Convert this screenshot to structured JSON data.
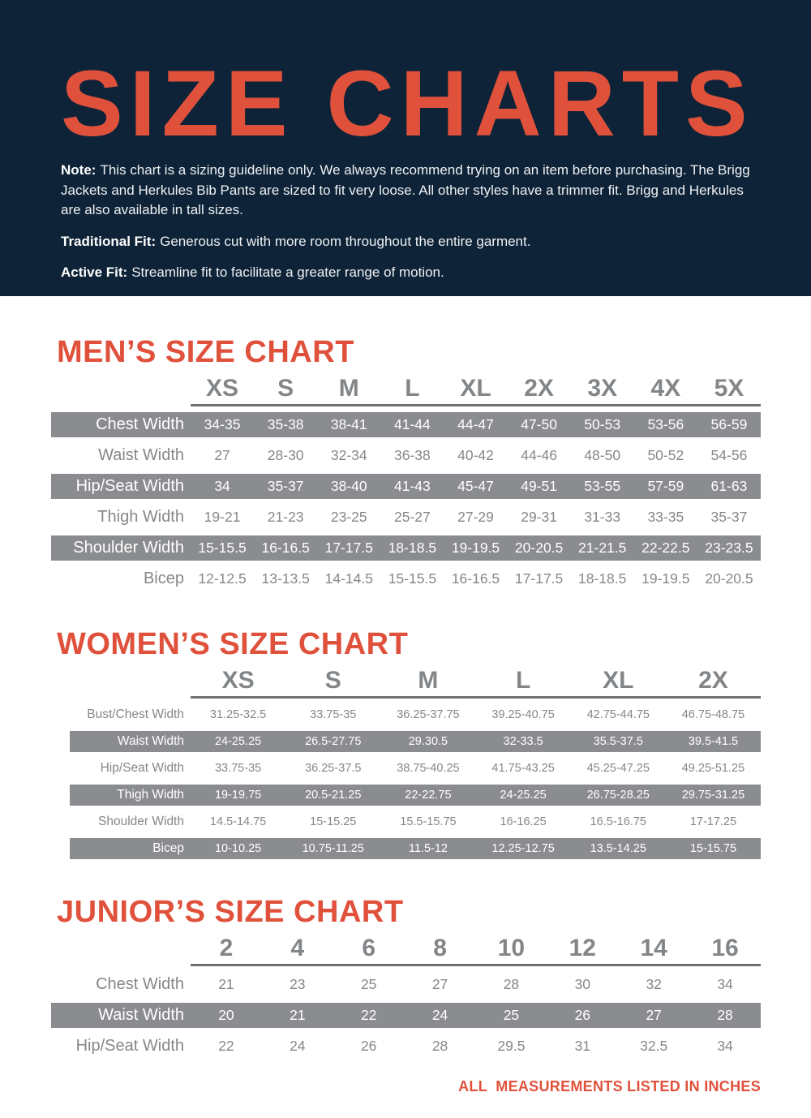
{
  "page": {
    "title": "SIZE CHARTS",
    "note_label": "Note:",
    "note_text": "This chart is a sizing guideline only. We always recommend trying on an item before purchasing. The Brigg Jackets and Herkules Bib Pants are sized to fit very loose. All other styles have a trimmer fit. Brigg and Herkules are also available in tall sizes.",
    "traditional_fit_label": "Traditional Fit:",
    "traditional_fit_text": "Generous cut with more room throughout the entire garment.",
    "active_fit_label": "Active Fit:",
    "active_fit_text": "Streamline fit to facilitate a greater range of motion.",
    "footer": "ALL  MEASUREMENTS LISTED IN INCHES",
    "colors": {
      "navy": "#0e2337",
      "orange": "#e0513c",
      "gray_band": "#8a8c8f",
      "gray_text": "#85878a",
      "underline": "#6e7073"
    }
  },
  "charts": [
    {
      "id": "mens",
      "title": "MEN’S SIZE CHART",
      "sizes": [
        "XS",
        "S",
        "M",
        "L",
        "XL",
        "2X",
        "3X",
        "4X",
        "5X"
      ],
      "rows": [
        {
          "label": "Chest Width",
          "shaded": true,
          "values": [
            "34-35",
            "35-38",
            "38-41",
            "41-44",
            "44-47",
            "47-50",
            "50-53",
            "53-56",
            "56-59"
          ]
        },
        {
          "label": "Waist Width",
          "shaded": false,
          "values": [
            "27",
            "28-30",
            "32-34",
            "36-38",
            "40-42",
            "44-46",
            "48-50",
            "50-52",
            "54-56"
          ]
        },
        {
          "label": "Hip/Seat Width",
          "shaded": true,
          "values": [
            "34",
            "35-37",
            "38-40",
            "41-43",
            "45-47",
            "49-51",
            "53-55",
            "57-59",
            "61-63"
          ]
        },
        {
          "label": "Thigh Width",
          "shaded": false,
          "values": [
            "19-21",
            "21-23",
            "23-25",
            "25-27",
            "27-29",
            "29-31",
            "31-33",
            "33-35",
            "35-37"
          ]
        },
        {
          "label": "Shoulder Width",
          "shaded": true,
          "values": [
            "15-15.5",
            "16-16.5",
            "17-17.5",
            "18-18.5",
            "19-19.5",
            "20-20.5",
            "21-21.5",
            "22-22.5",
            "23-23.5"
          ]
        },
        {
          "label": "Bicep",
          "shaded": false,
          "values": [
            "12-12.5",
            "13-13.5",
            "14-14.5",
            "15-15.5",
            "16-16.5",
            "17-17.5",
            "18-18.5",
            "19-19.5",
            "20-20.5"
          ]
        }
      ]
    },
    {
      "id": "womens",
      "title": "WOMEN’S SIZE CHART",
      "sizes": [
        "XS",
        "S",
        "M",
        "L",
        "XL",
        "2X"
      ],
      "rows": [
        {
          "label": "Bust/Chest Width",
          "shaded": false,
          "values": [
            "31.25-32.5",
            "33.75-35",
            "36.25-37.75",
            "39.25-40.75",
            "42.75-44.75",
            "46.75-48.75"
          ]
        },
        {
          "label": "Waist Width",
          "shaded": true,
          "values": [
            "24-25.25",
            "26.5-27.75",
            "29.30.5",
            "32-33.5",
            "35.5-37.5",
            "39.5-41.5"
          ]
        },
        {
          "label": "Hip/Seat Width",
          "shaded": false,
          "values": [
            "33.75-35",
            "36.25-37.5",
            "38.75-40.25",
            "41.75-43.25",
            "45.25-47.25",
            "49.25-51.25"
          ]
        },
        {
          "label": "Thigh Width",
          "shaded": true,
          "values": [
            "19-19.75",
            "20.5-21.25",
            "22-22.75",
            "24-25.25",
            "26.75-28.25",
            "29.75-31.25"
          ]
        },
        {
          "label": "Shoulder Width",
          "shaded": false,
          "values": [
            "14.5-14.75",
            "15-15.25",
            "15.5-15.75",
            "16-16.25",
            "16.5-16.75",
            "17-17.25"
          ]
        },
        {
          "label": "Bicep",
          "shaded": true,
          "values": [
            "10-10.25",
            "10.75-11.25",
            "11.5-12",
            "12.25-12.75",
            "13.5-14.25",
            "15-15.75"
          ]
        }
      ]
    },
    {
      "id": "juniors",
      "title": "JUNIOR’S SIZE CHART",
      "sizes": [
        "2",
        "4",
        "6",
        "8",
        "10",
        "12",
        "14",
        "16"
      ],
      "rows": [
        {
          "label": "Chest Width",
          "shaded": false,
          "values": [
            "21",
            "23",
            "25",
            "27",
            "28",
            "30",
            "32",
            "34"
          ]
        },
        {
          "label": "Waist Width",
          "shaded": true,
          "values": [
            "20",
            "21",
            "22",
            "24",
            "25",
            "26",
            "27",
            "28"
          ]
        },
        {
          "label": "Hip/Seat Width",
          "shaded": false,
          "values": [
            "22",
            "24",
            "26",
            "28",
            "29.5",
            "31",
            "32.5",
            "34"
          ]
        }
      ]
    }
  ]
}
